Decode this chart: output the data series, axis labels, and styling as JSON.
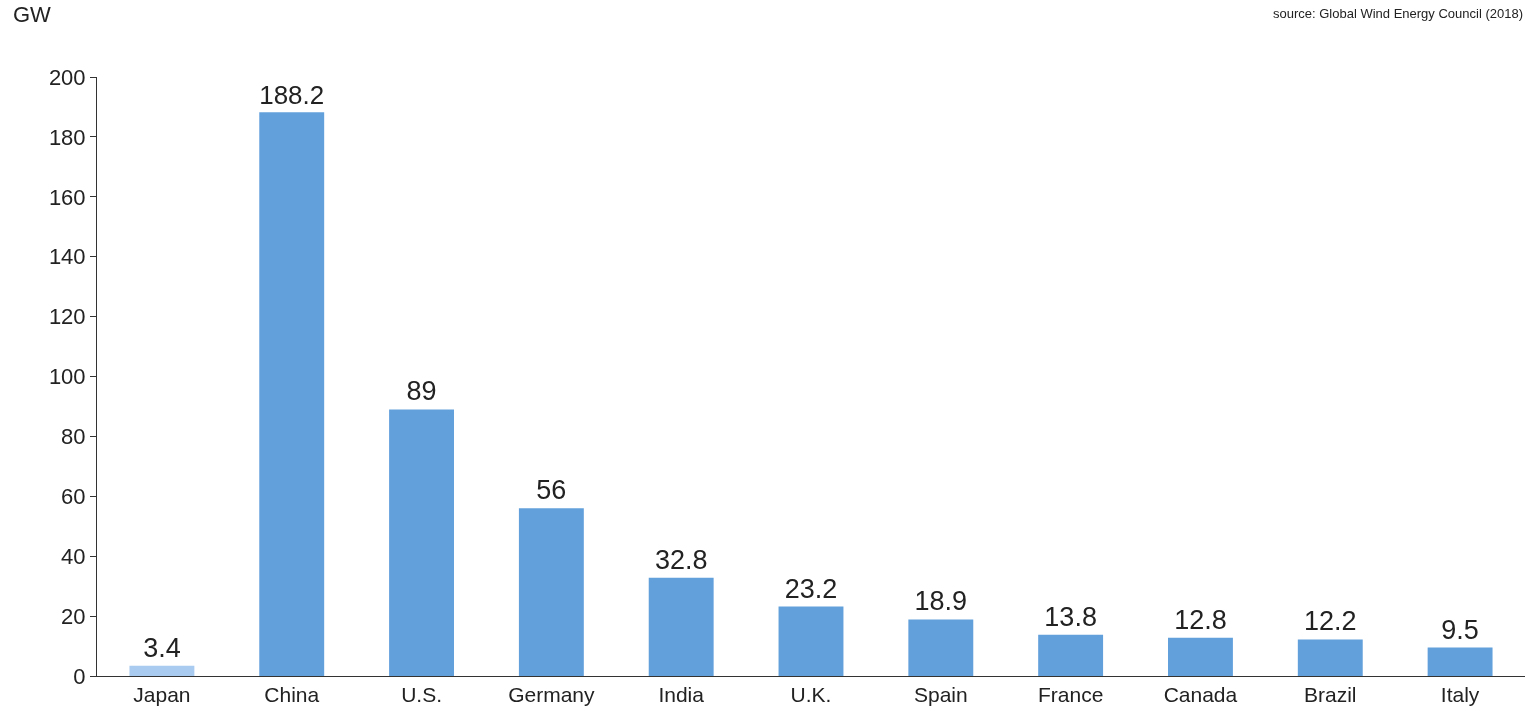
{
  "chart_data": {
    "type": "bar",
    "ylabel": "GW",
    "annotations": [
      "source: Global Wind Energy Council (2018)"
    ],
    "categories": [
      "Japan",
      "China",
      "U.S.",
      "Germany",
      "India",
      "U.K.",
      "Spain",
      "France",
      "Canada",
      "Brazil",
      "Italy"
    ],
    "values": [
      3.4,
      188.2,
      89,
      56,
      32.8,
      23.2,
      18.9,
      13.8,
      12.8,
      12.2,
      9.5
    ],
    "colors": [
      "#a9cbef",
      "#62a0dc",
      "#62a0dc",
      "#62a0dc",
      "#62a0dc",
      "#62a0dc",
      "#62a0dc",
      "#62a0dc",
      "#62a0dc",
      "#62a0dc",
      "#62a0dc"
    ],
    "ylim": [
      0,
      200
    ],
    "yticks": [
      0,
      20,
      40,
      60,
      80,
      100,
      120,
      140,
      160,
      180,
      200
    ],
    "data_labels": true
  }
}
